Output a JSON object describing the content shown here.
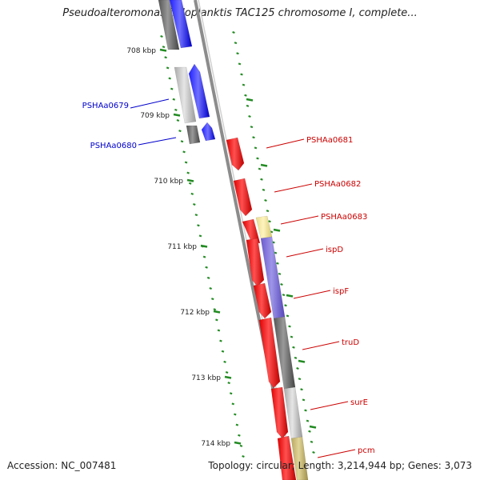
{
  "title": "Pseudoalteromonas haloplanktis TAC125 chromosome I, complete...",
  "footer": {
    "accession": "Accession: NC_007481",
    "stats": "Topology: circular; Length: 3,214,944 bp; Genes: 3,073"
  },
  "colors": {
    "forward_gene": "#0000ff",
    "reverse_gene": "#ff0000",
    "backbone": "#888888",
    "tick": "#228b22",
    "label_forward": "#0000cc",
    "label_reverse": "#cc0000"
  },
  "ticks": [
    "708 kbp",
    "709 kbp",
    "710 kbp",
    "711 kbp",
    "712 kbp",
    "713 kbp",
    "714 kbp"
  ],
  "genes": [
    {
      "label": "PSHAa0679",
      "strand": "forward"
    },
    {
      "label": "PSHAa0680",
      "strand": "forward"
    },
    {
      "label": "PSHAa0681",
      "strand": "reverse"
    },
    {
      "label": "PSHAa0682",
      "strand": "reverse"
    },
    {
      "label": "PSHAa0683",
      "strand": "reverse"
    },
    {
      "label": "ispD",
      "strand": "reverse"
    },
    {
      "label": "ispF",
      "strand": "reverse"
    },
    {
      "label": "truD",
      "strand": "reverse"
    },
    {
      "label": "surE",
      "strand": "reverse"
    },
    {
      "label": "pcm",
      "strand": "reverse"
    }
  ]
}
